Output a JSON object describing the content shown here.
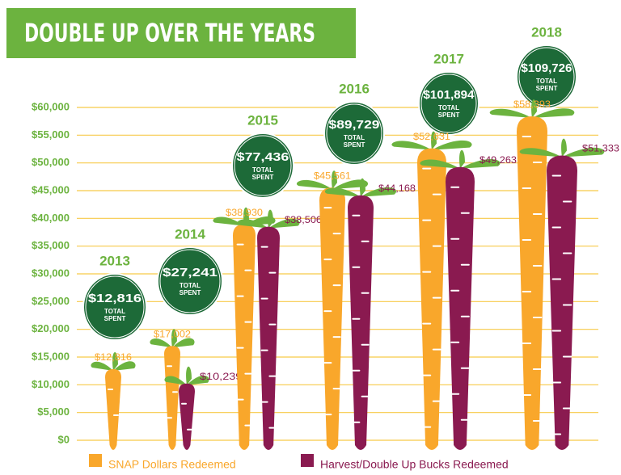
{
  "chart_data": {
    "type": "carrot-bar",
    "title": "DOUBLE UP OVER THE YEARS",
    "categories": [
      "2013",
      "2014",
      "2015",
      "2016",
      "2017",
      "2018"
    ],
    "series": [
      {
        "name": "SNAP Dollars Redeemed",
        "color": "#f9a72b",
        "values": [
          12816,
          17002,
          38930,
          45561,
          52631,
          58393
        ],
        "value_labels": [
          "$12,816",
          "$17,002",
          "$38,930",
          "$45,561",
          "$52,631",
          "$58,393"
        ]
      },
      {
        "name": "Harvest/Double Up Bucks Redeemed",
        "color": "#8a1a50",
        "values": [
          null,
          10239,
          38506,
          44168,
          49263,
          51333
        ],
        "value_labels": [
          null,
          "$10,239*",
          "$38,506",
          "$44,168",
          "$49,263",
          "$51,333"
        ]
      }
    ],
    "totals": [
      12816,
      27241,
      77436,
      89729,
      101894,
      109726
    ],
    "total_labels": [
      "$12,816",
      "$27,241",
      "$77,436",
      "$89,729",
      "$101,894",
      "$109,726"
    ],
    "total_caption": [
      "TOTAL",
      "SPENT"
    ],
    "ylim": [
      0,
      60000
    ],
    "yticks": [
      {
        "value": 0,
        "label": "$0"
      },
      {
        "value": 5000,
        "label": "$5,000"
      },
      {
        "value": 10000,
        "label": "$10,000"
      },
      {
        "value": 15000,
        "label": "$15,000"
      },
      {
        "value": 20000,
        "label": "$20,000"
      },
      {
        "value": 25000,
        "label": "$25,000"
      },
      {
        "value": 30000,
        "label": "$30,000"
      },
      {
        "value": 35000,
        "label": "$35,000"
      },
      {
        "value": 40000,
        "label": "$40,000"
      },
      {
        "value": 45000,
        "label": "$45,000"
      },
      {
        "value": 50000,
        "label": "$50,000"
      },
      {
        "value": 55000,
        "label": "$55,000"
      },
      {
        "value": 60000,
        "label": "$60,000"
      }
    ],
    "grid": true,
    "grid_color": "#f7c948",
    "accent_color": "#6cb33f",
    "badge_color": "#1d6a38"
  }
}
